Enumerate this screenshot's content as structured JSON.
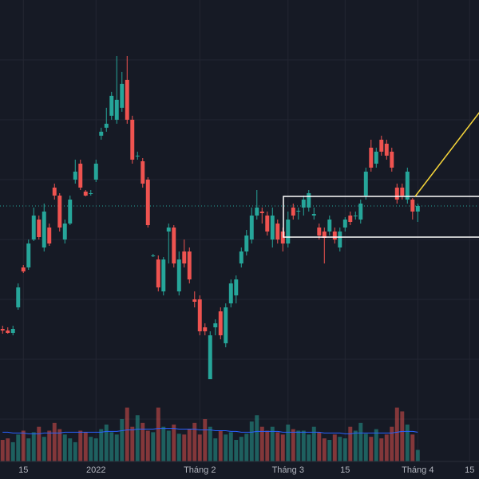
{
  "chart_data": {
    "type": "candlestick",
    "up_color": "#26a69a",
    "down_color": "#ef5350",
    "volume_ma_color": "#2962ff",
    "xlim": [
      -0.5,
      91.8
    ],
    "ylim": [
      0,
      600
    ],
    "y2lim": [
      0,
      600
    ],
    "grid": true,
    "xticks": [
      {
        "value": 4,
        "label": "15"
      },
      {
        "value": 18,
        "label": "2022"
      },
      {
        "value": 38,
        "label": "Tháng 2"
      },
      {
        "value": 55,
        "label": "Tháng 3"
      },
      {
        "value": 66,
        "label": "15"
      },
      {
        "value": 80,
        "label": "Tháng 4"
      },
      {
        "value": 90,
        "label": "15"
      }
    ],
    "open": [
      188,
      186,
      183,
      215,
      265,
      265,
      300,
      325,
      290,
      315,
      365,
      355,
      300,
      320,
      375,
      395,
      360,
      358,
      375,
      430,
      440,
      455,
      450,
      465,
      500,
      450,
      405,
      398,
      375,
      280,
      275,
      235,
      310,
      315,
      235,
      285,
      285,
      225,
      225,
      190,
      125,
      190,
      210,
      170,
      220,
      230,
      270,
      285,
      300,
      330,
      335,
      330,
      300,
      320,
      310,
      295,
      340,
      335,
      340,
      340,
      330,
      315,
      310,
      310,
      310,
      290,
      315,
      330,
      330,
      325,
      355,
      415,
      395,
      425,
      420,
      410,
      365,
      365,
      350,
      350,
      335
    ],
    "high": [
      192,
      190,
      192,
      245,
      268,
      300,
      340,
      330,
      345,
      320,
      370,
      358,
      325,
      355,
      400,
      400,
      362,
      362,
      400,
      440,
      465,
      485,
      530,
      510,
      530,
      455,
      410,
      402,
      378,
      282,
      280,
      278,
      320,
      318,
      285,
      300,
      290,
      235,
      230,
      195,
      185,
      200,
      215,
      220,
      250,
      255,
      290,
      312,
      340,
      362,
      340,
      335,
      340,
      325,
      315,
      335,
      345,
      340,
      355,
      362,
      340,
      320,
      315,
      330,
      315,
      315,
      328,
      335,
      335,
      350,
      390,
      425,
      415,
      430,
      425,
      415,
      370,
      370,
      390,
      352,
      345
    ],
    "low": [
      182,
      182,
      180,
      212,
      258,
      262,
      298,
      300,
      285,
      292,
      350,
      310,
      295,
      318,
      370,
      362,
      354,
      355,
      372,
      425,
      435,
      450,
      445,
      460,
      445,
      395,
      400,
      365,
      315,
      278,
      235,
      230,
      270,
      265,
      230,
      265,
      245,
      215,
      180,
      180,
      125,
      180,
      175,
      165,
      215,
      220,
      265,
      280,
      295,
      325,
      320,
      305,
      290,
      295,
      285,
      290,
      325,
      325,
      330,
      335,
      325,
      300,
      270,
      305,
      295,
      285,
      310,
      318,
      325,
      320,
      350,
      385,
      390,
      405,
      400,
      385,
      345,
      350,
      345,
      325,
      322
    ],
    "close": [
      186,
      183,
      188,
      240,
      260,
      295,
      330,
      303,
      335,
      295,
      355,
      315,
      320,
      350,
      385,
      365,
      355,
      358,
      395,
      435,
      445,
      480,
      475,
      495,
      450,
      400,
      405,
      370,
      318,
      280,
      240,
      275,
      315,
      270,
      275,
      270,
      250,
      222,
      185,
      185,
      180,
      195,
      180,
      215,
      245,
      250,
      285,
      305,
      330,
      340,
      333,
      310,
      330,
      300,
      295,
      325,
      330,
      336,
      350,
      358,
      332,
      305,
      302,
      325,
      300,
      310,
      325,
      322,
      330,
      345,
      385,
      390,
      410,
      410,
      405,
      390,
      350,
      355,
      385,
      335,
      342
    ],
    "volume": [
      28,
      30,
      25,
      35,
      40,
      30,
      38,
      45,
      32,
      40,
      50,
      42,
      35,
      30,
      25,
      40,
      38,
      32,
      30,
      42,
      48,
      38,
      35,
      55,
      70,
      45,
      60,
      50,
      40,
      38,
      70,
      45,
      40,
      48,
      36,
      35,
      42,
      50,
      35,
      55,
      45,
      30,
      40,
      35,
      38,
      28,
      32,
      36,
      52,
      60,
      45,
      40,
      45,
      38,
      35,
      48,
      42,
      40,
      40,
      35,
      45,
      38,
      30,
      28,
      35,
      32,
      30,
      45,
      40,
      50,
      36,
      32,
      42,
      30,
      35,
      45,
      70,
      65,
      48,
      35,
      15
    ],
    "volume_ma": [
      38,
      38,
      37,
      37,
      37,
      36,
      36,
      36,
      37,
      37,
      37,
      37,
      38,
      38,
      38,
      38,
      38,
      38,
      38,
      38,
      39,
      39,
      39,
      40,
      41,
      41,
      42,
      42,
      42,
      42,
      43,
      43,
      43,
      43,
      42,
      42,
      42,
      42,
      41,
      41,
      41,
      40,
      40,
      40,
      39,
      39,
      38,
      38,
      38,
      39,
      39,
      39,
      39,
      39,
      38,
      38,
      38,
      38,
      38,
      38,
      38,
      38,
      37,
      37,
      37,
      37,
      36,
      36,
      37,
      37,
      37,
      37,
      37,
      37,
      37,
      37,
      38,
      39,
      39,
      39,
      38
    ],
    "last_price": 342
  }
}
